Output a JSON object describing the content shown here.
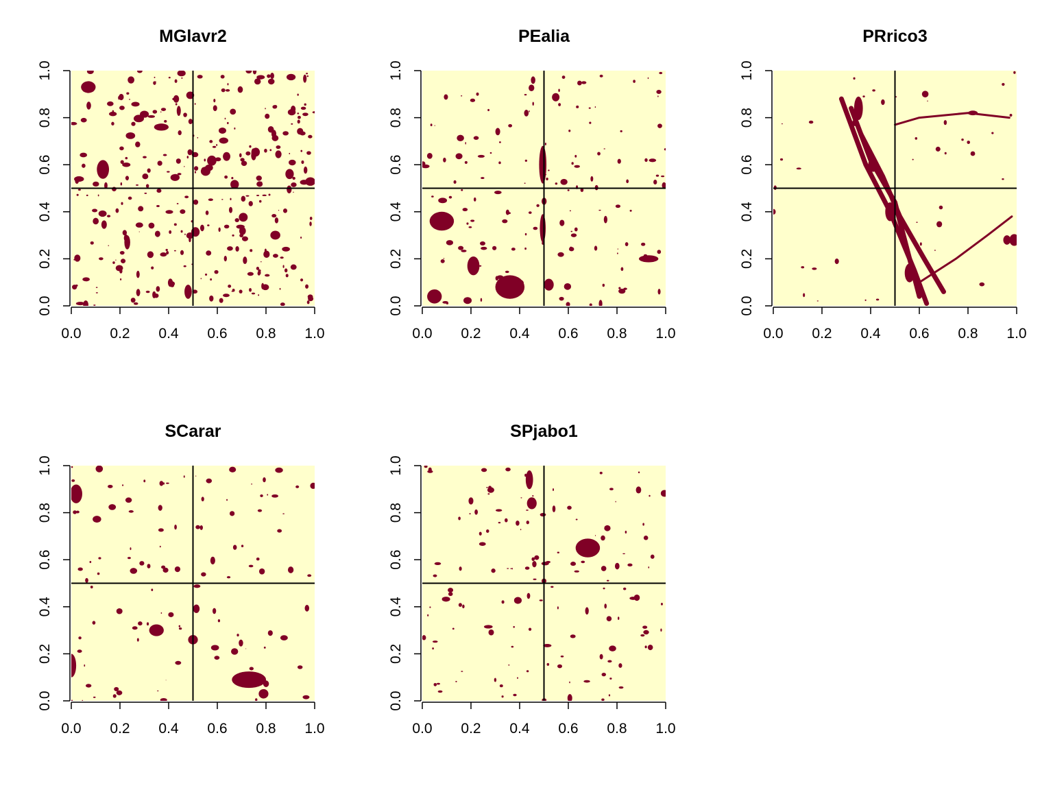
{
  "colors": {
    "background_class": "#FFFFCC",
    "foreground_class": "#800026",
    "axis": "#000000"
  },
  "chart_data": [
    {
      "type": "heatmap",
      "title": "MGlavr2",
      "xlabel": "",
      "ylabel": "",
      "xlim": [
        0,
        1
      ],
      "ylim": [
        0,
        1
      ],
      "x_ticks": [
        "0.0",
        "0.2",
        "0.4",
        "0.6",
        "0.8",
        "1.0"
      ],
      "y_ticks": [
        "0.0",
        "0.2",
        "0.4",
        "0.6",
        "0.8",
        "1.0"
      ],
      "reference_lines": {
        "vertical_x": 0.5,
        "horizontal_y": 0.5
      },
      "pattern": "scattered"
    },
    {
      "type": "heatmap",
      "title": "PEalia",
      "xlabel": "",
      "ylabel": "",
      "xlim": [
        0,
        1
      ],
      "ylim": [
        0,
        1
      ],
      "x_ticks": [
        "0.0",
        "0.2",
        "0.4",
        "0.6",
        "0.8",
        "1.0"
      ],
      "y_ticks": [
        "0.0",
        "0.2",
        "0.4",
        "0.6",
        "0.8",
        "1.0"
      ],
      "reference_lines": {
        "vertical_x": 0.5,
        "horizontal_y": 0.5
      },
      "pattern": "central-strip-bottom-left"
    },
    {
      "type": "heatmap",
      "title": "PRrico3",
      "xlabel": "",
      "ylabel": "",
      "xlim": [
        0,
        1
      ],
      "ylim": [
        0,
        1
      ],
      "x_ticks": [
        "0.0",
        "0.2",
        "0.4",
        "0.6",
        "0.8",
        "1.0"
      ],
      "y_ticks": [
        "0.0",
        "0.2",
        "0.4",
        "0.6",
        "0.8",
        "1.0"
      ],
      "reference_lines": {
        "vertical_x": 0.5,
        "horizontal_y": 0.5
      },
      "pattern": "diagonal-river"
    },
    {
      "type": "heatmap",
      "title": "SCarar",
      "xlabel": "",
      "ylabel": "",
      "xlim": [
        0,
        1
      ],
      "ylim": [
        0,
        1
      ],
      "x_ticks": [
        "0.0",
        "0.2",
        "0.4",
        "0.6",
        "0.8",
        "1.0"
      ],
      "y_ticks": [
        "0.0",
        "0.2",
        "0.4",
        "0.6",
        "0.8",
        "1.0"
      ],
      "reference_lines": {
        "vertical_x": 0.5,
        "horizontal_y": 0.5
      },
      "pattern": "bottom-clusters"
    },
    {
      "type": "heatmap",
      "title": "SPjabo1",
      "xlabel": "",
      "ylabel": "",
      "xlim": [
        0,
        1
      ],
      "ylim": [
        0,
        1
      ],
      "x_ticks": [
        "0.0",
        "0.2",
        "0.4",
        "0.6",
        "0.8",
        "1.0"
      ],
      "y_ticks": [
        "0.0",
        "0.2",
        "0.4",
        "0.6",
        "0.8",
        "1.0"
      ],
      "reference_lines": {
        "vertical_x": 0.5,
        "horizontal_y": 0.5
      },
      "pattern": "upper-center-clusters"
    }
  ]
}
